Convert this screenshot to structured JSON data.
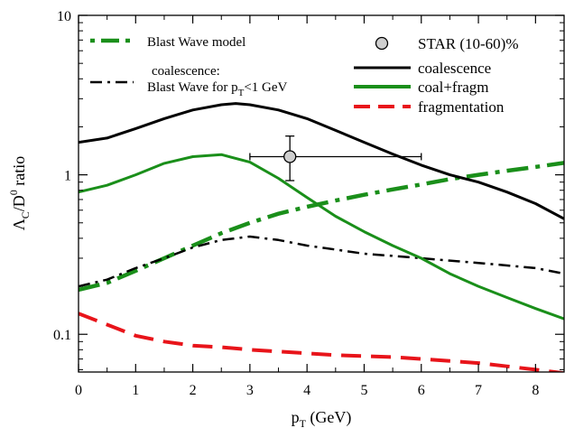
{
  "chart_data": {
    "type": "line",
    "xlabel": "p_T (GeV)",
    "ylabel": "Λ_C/D^0 ratio",
    "xlim": [
      0,
      8.5
    ],
    "ylim": [
      0.058,
      10
    ],
    "yscale": "log",
    "grid": false,
    "x_ticks": [
      "0",
      "1",
      "2",
      "3",
      "4",
      "5",
      "6",
      "7",
      "8"
    ],
    "y_ticks": [
      "0.1",
      "1",
      "10"
    ],
    "legend_position_left": "top-left",
    "legend_position_right": "top-right",
    "series": [
      {
        "name": "Blast Wave model",
        "color": "#1a8f1a",
        "style": "long-dash-dot",
        "legend": [
          "Blast Wave model"
        ],
        "x": [
          0,
          0.5,
          1,
          1.5,
          2,
          2.5,
          3,
          3.5,
          4,
          4.5,
          5,
          5.5,
          6,
          6.5,
          7,
          7.5,
          8,
          8.5
        ],
        "y": [
          0.19,
          0.21,
          0.25,
          0.3,
          0.36,
          0.43,
          0.5,
          0.57,
          0.63,
          0.69,
          0.75,
          0.81,
          0.87,
          0.94,
          1.0,
          1.06,
          1.12,
          1.19
        ]
      },
      {
        "name": "coalescence: Blast Wave for p_T<1 GeV",
        "color": "#000000",
        "style": "dash-dot",
        "legend": [
          "coalescence:",
          "Blast Wave for p",
          "T",
          "<1 GeV"
        ],
        "x": [
          0,
          0.5,
          1,
          1.5,
          2,
          2.5,
          3,
          3.5,
          4,
          4.5,
          5,
          5.5,
          6,
          6.5,
          7,
          7.5,
          8,
          8.5
        ],
        "y": [
          0.2,
          0.22,
          0.26,
          0.3,
          0.35,
          0.39,
          0.41,
          0.39,
          0.36,
          0.34,
          0.32,
          0.31,
          0.3,
          0.29,
          0.28,
          0.27,
          0.26,
          0.24
        ]
      },
      {
        "name": "coalescence",
        "color": "#000000",
        "style": "solid",
        "legend": [
          "coalescence"
        ],
        "x": [
          0,
          0.5,
          1,
          1.5,
          2,
          2.5,
          2.75,
          3,
          3.5,
          4,
          4.5,
          5,
          5.5,
          6,
          6.5,
          7,
          7.5,
          8,
          8.5
        ],
        "y": [
          1.6,
          1.7,
          1.95,
          2.25,
          2.55,
          2.75,
          2.8,
          2.75,
          2.55,
          2.25,
          1.9,
          1.6,
          1.35,
          1.15,
          1.0,
          0.9,
          0.78,
          0.66,
          0.53
        ]
      },
      {
        "name": "coal+fragm",
        "color": "#1a8f1a",
        "style": "solid",
        "legend": [
          "coal+fragm"
        ],
        "x": [
          0,
          0.5,
          1,
          1.5,
          2,
          2.5,
          3,
          3.5,
          4,
          4.5,
          5,
          5.5,
          6,
          6.5,
          7,
          7.5,
          8,
          8.5
        ],
        "y": [
          0.78,
          0.86,
          1.0,
          1.18,
          1.3,
          1.34,
          1.2,
          0.95,
          0.72,
          0.55,
          0.44,
          0.36,
          0.3,
          0.24,
          0.2,
          0.17,
          0.145,
          0.125
        ]
      },
      {
        "name": "fragmentation",
        "color": "#e8141a",
        "style": "dashed",
        "legend": [
          "fragmentation"
        ],
        "x": [
          0,
          0.5,
          1,
          1.5,
          2,
          2.5,
          3,
          3.5,
          4,
          4.5,
          5,
          5.5,
          6,
          6.5,
          7,
          7.5,
          8,
          8.5
        ],
        "y": [
          0.135,
          0.115,
          0.098,
          0.09,
          0.085,
          0.083,
          0.08,
          0.078,
          0.076,
          0.074,
          0.073,
          0.072,
          0.07,
          0.068,
          0.066,
          0.063,
          0.06,
          0.057
        ]
      }
    ],
    "data_points": [
      {
        "name": "STAR (10-60)%",
        "legend": [
          "STAR (10-60)%"
        ],
        "marker": "open-circle",
        "fill": "#cfcfcf",
        "x": 3.7,
        "y": 1.3,
        "x_err": [
          3.0,
          6.0
        ],
        "y_err": [
          0.92,
          1.75
        ]
      }
    ]
  }
}
